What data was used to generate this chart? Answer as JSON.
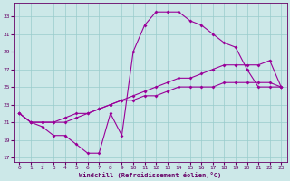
{
  "xlabel": "Windchill (Refroidissement éolien,°C)",
  "bg_color": "#cce8e8",
  "grid_color": "#99cccc",
  "line_color": "#990099",
  "xmin": 0,
  "xmax": 23,
  "ymin": 17,
  "ymax": 34,
  "yticks": [
    17,
    19,
    21,
    23,
    25,
    27,
    29,
    31,
    33
  ],
  "xticks": [
    0,
    1,
    2,
    3,
    4,
    5,
    6,
    7,
    8,
    9,
    10,
    11,
    12,
    13,
    14,
    15,
    16,
    17,
    18,
    19,
    20,
    21,
    22,
    23
  ],
  "curve1_x": [
    0,
    1,
    2,
    3,
    4,
    5,
    6,
    7,
    8,
    9,
    10,
    11,
    12,
    13,
    14,
    15,
    16,
    17,
    18,
    19,
    20,
    21,
    22,
    23
  ],
  "curve1_y": [
    22.0,
    21.0,
    20.5,
    19.5,
    19.5,
    18.5,
    17.5,
    17.5,
    22.0,
    19.5,
    29.0,
    32.0,
    33.5,
    33.5,
    33.5,
    32.5,
    32.0,
    31.0,
    30.0,
    29.5,
    27.0,
    25.0,
    25.0,
    25.0
  ],
  "curve2_x": [
    0,
    1,
    2,
    3,
    4,
    5,
    6,
    7,
    8,
    9,
    10,
    11,
    12,
    13,
    14,
    15,
    16,
    17,
    18,
    19,
    20,
    21,
    22,
    23
  ],
  "curve2_y": [
    22.0,
    21.0,
    21.0,
    21.0,
    21.0,
    21.5,
    22.0,
    22.5,
    23.0,
    23.5,
    24.0,
    24.5,
    25.0,
    25.5,
    26.0,
    26.0,
    26.5,
    27.0,
    27.5,
    27.5,
    27.5,
    27.5,
    28.0,
    25.0
  ],
  "curve3_x": [
    0,
    1,
    2,
    3,
    4,
    5,
    6,
    7,
    8,
    9,
    10,
    11,
    12,
    13,
    14,
    15,
    16,
    17,
    18,
    19,
    20,
    21,
    22,
    23
  ],
  "curve3_y": [
    22.0,
    21.0,
    21.0,
    21.0,
    21.5,
    22.0,
    22.0,
    22.5,
    23.0,
    23.5,
    23.5,
    24.0,
    24.0,
    24.5,
    25.0,
    25.0,
    25.0,
    25.0,
    25.5,
    25.5,
    25.5,
    25.5,
    25.5,
    25.0
  ]
}
